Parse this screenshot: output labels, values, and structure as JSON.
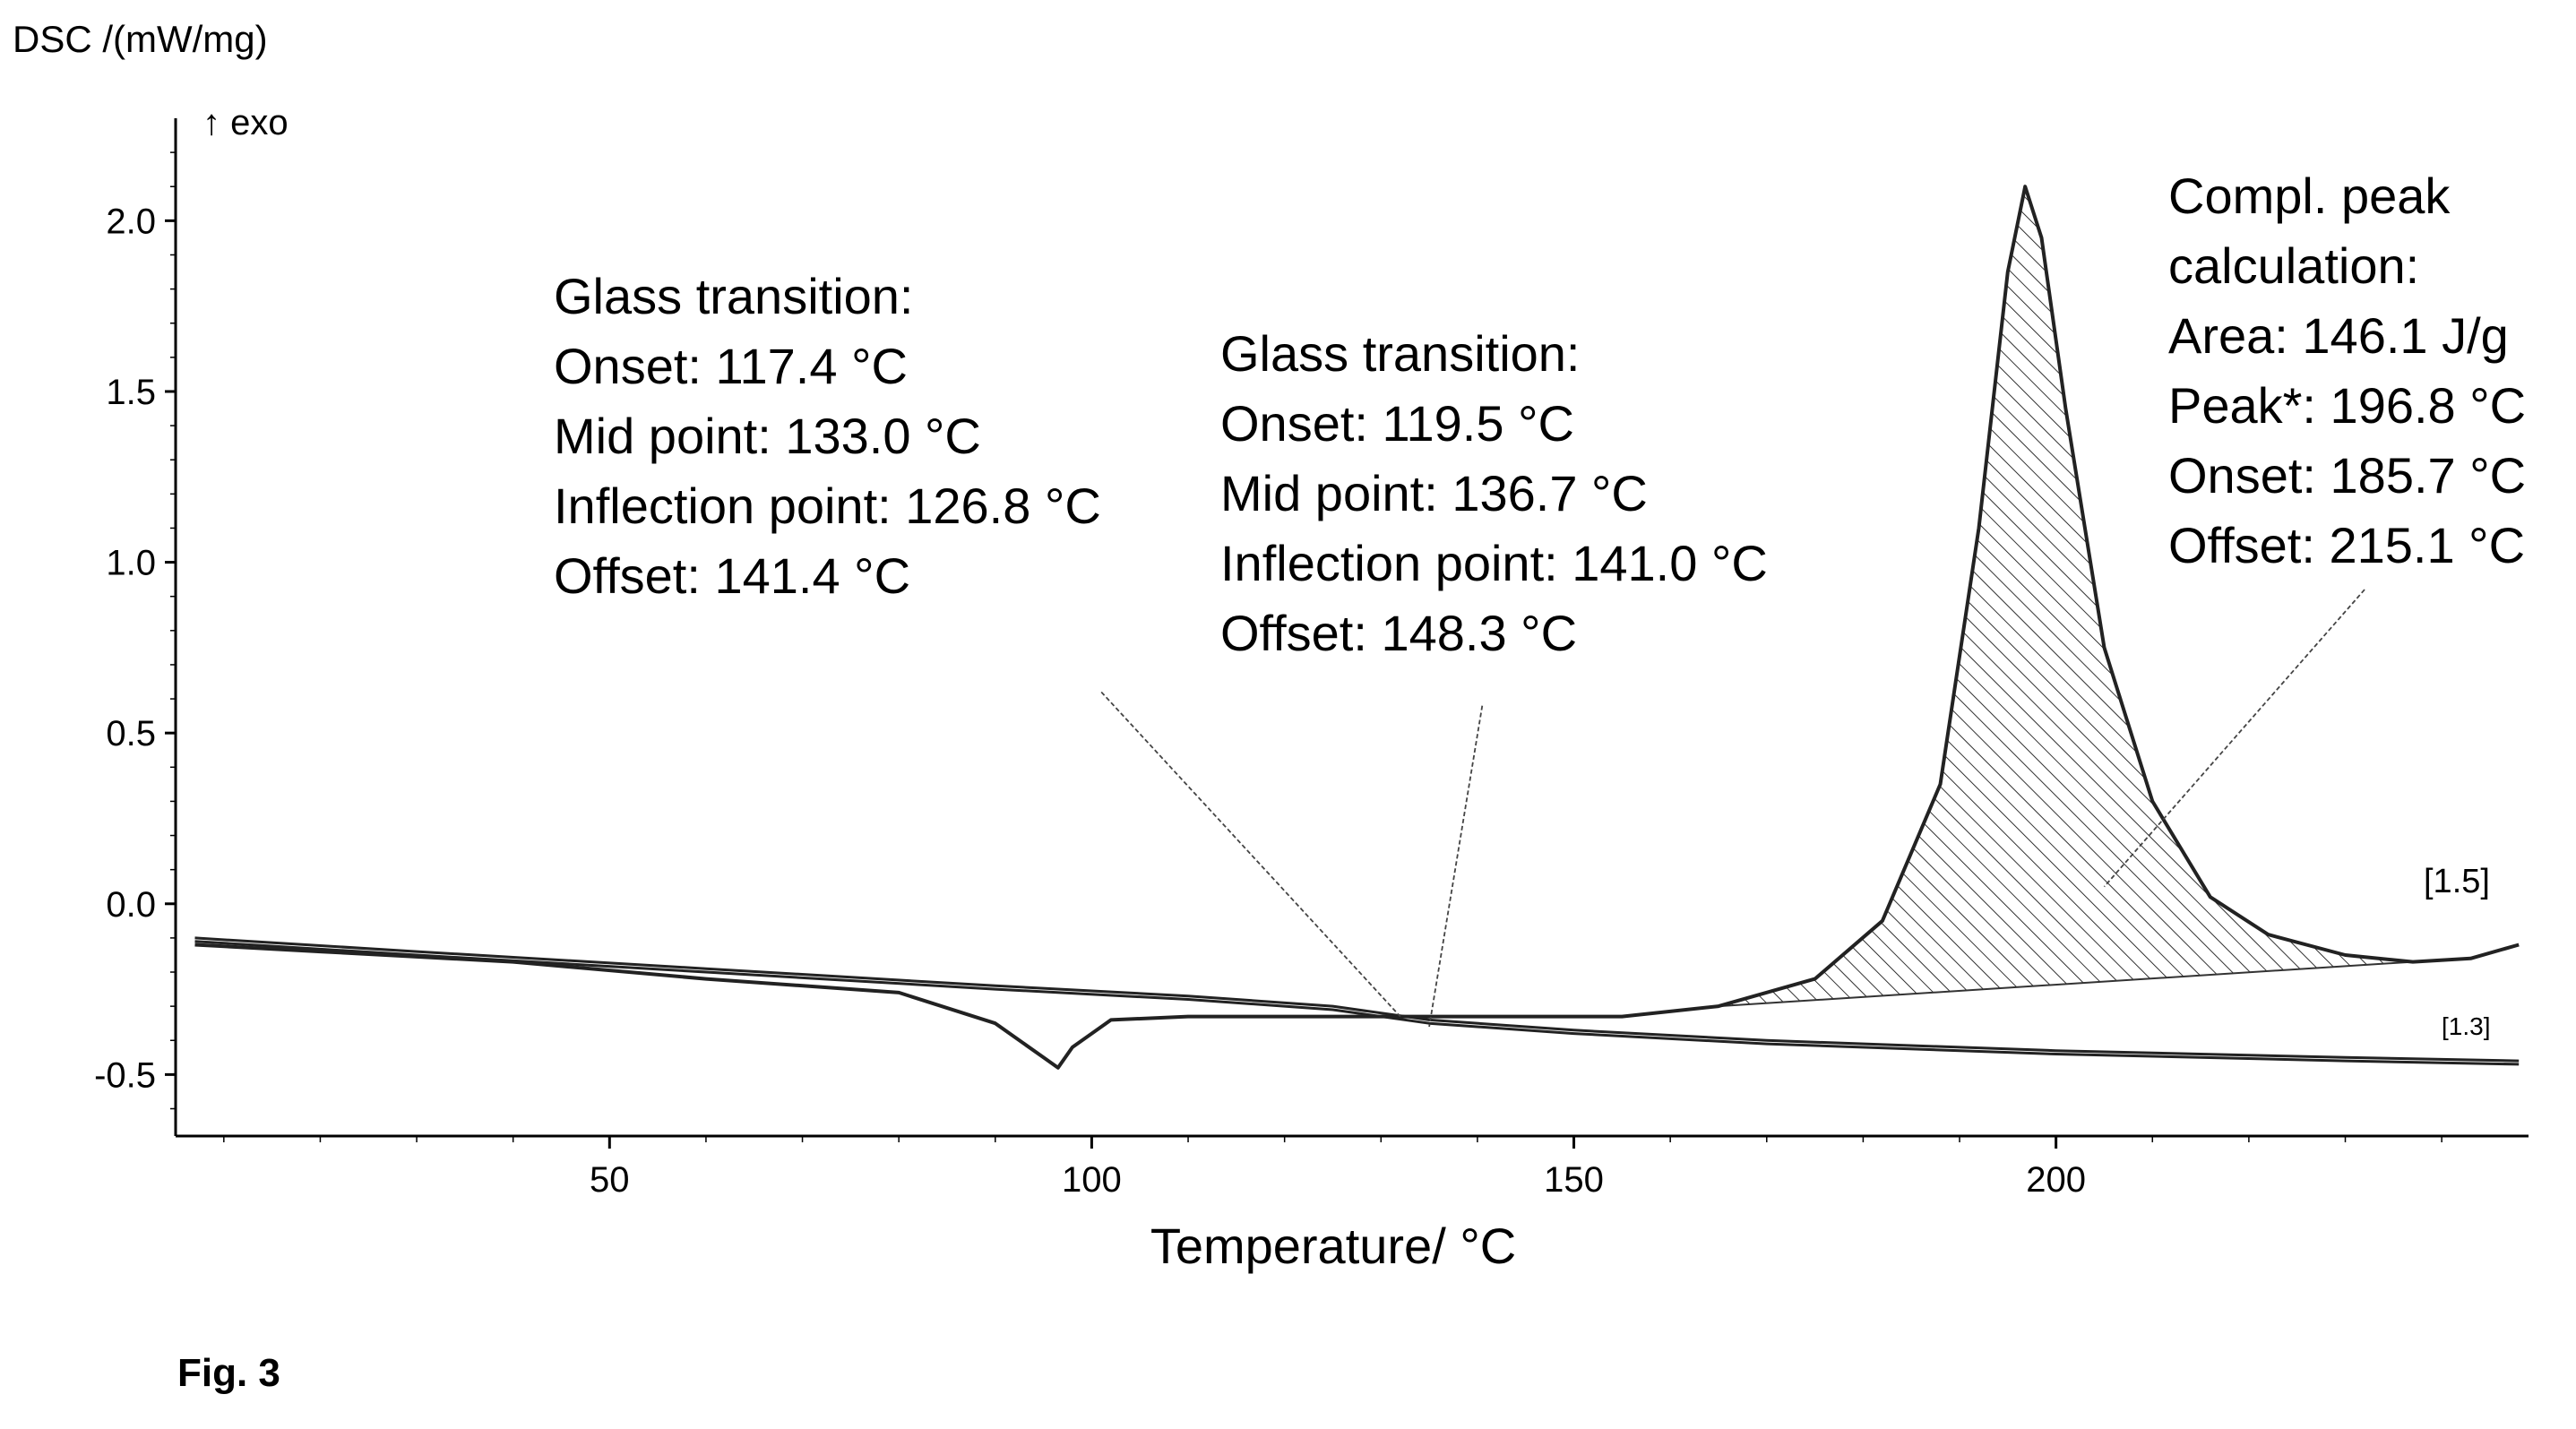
{
  "figure_label": "Fig. 3",
  "chart_data": {
    "type": "line",
    "ylabel": "DSC /(mW/mg)",
    "y_direction_label": "↑ exo",
    "xlabel": "Temperature/ °C",
    "xlim": [
      5,
      249
    ],
    "ylim": [
      -0.68,
      2.3
    ],
    "x_ticks": [
      50,
      100,
      150,
      200
    ],
    "x_tick_labels": [
      "50",
      "100",
      "150",
      "200"
    ],
    "y_ticks": [
      -0.5,
      0.0,
      0.5,
      1.0,
      1.5,
      2.0
    ],
    "y_tick_labels": [
      "-0.5",
      "0.0",
      "0.5",
      "1.0",
      "1.5",
      "2.0"
    ],
    "grid": false,
    "series": [
      {
        "x": [
          7,
          20,
          40,
          60,
          80,
          90,
          95,
          96.5,
          98,
          102,
          110,
          125,
          140,
          155,
          165,
          175,
          182,
          188,
          192,
          195,
          196.8,
          198.5,
          201,
          205,
          210,
          216,
          222,
          230,
          237,
          243,
          248
        ],
        "y": [
          -0.12,
          -0.14,
          -0.17,
          -0.22,
          -0.26,
          -0.35,
          -0.45,
          -0.48,
          -0.42,
          -0.34,
          -0.33,
          -0.33,
          -0.33,
          -0.33,
          -0.3,
          -0.22,
          -0.05,
          0.35,
          1.1,
          1.85,
          2.1,
          1.95,
          1.45,
          0.75,
          0.3,
          0.02,
          -0.09,
          -0.15,
          -0.17,
          -0.16,
          -0.12
        ]
      },
      {
        "x": [
          7,
          30,
          60,
          90,
          110,
          125,
          135,
          150,
          170,
          200,
          230,
          248
        ],
        "y": [
          -0.1,
          -0.14,
          -0.19,
          -0.24,
          -0.27,
          -0.3,
          -0.34,
          -0.37,
          -0.4,
          -0.43,
          -0.45,
          -0.46
        ]
      },
      {
        "x": [
          7,
          30,
          60,
          90,
          110,
          125,
          135,
          150,
          170,
          200,
          230,
          248
        ],
        "y": [
          -0.11,
          -0.15,
          -0.2,
          -0.25,
          -0.28,
          -0.31,
          -0.35,
          -0.38,
          -0.41,
          -0.44,
          -0.46,
          -0.47
        ]
      }
    ],
    "series_end_labels": [
      "[1.5]",
      "[1.3]"
    ],
    "peak_area": {
      "x": [
        165,
        175,
        182,
        188,
        192,
        195,
        196.8,
        198.5,
        201,
        205,
        210,
        216,
        222,
        230,
        237
      ],
      "y": [
        -0.3,
        -0.22,
        -0.05,
        0.35,
        1.1,
        1.85,
        2.1,
        1.95,
        1.45,
        0.75,
        0.3,
        0.02,
        -0.09,
        -0.15,
        -0.17
      ],
      "baseline": [
        [
          165,
          -0.3
        ],
        [
          237,
          -0.17
        ]
      ]
    },
    "annotations": [
      {
        "lines": [
          "Glass transition:",
          "Onset: 117.4 °C",
          "Mid point: 133.0 °C",
          "Inflection point: 126.8 °C",
          "Offset: 141.4 °C"
        ],
        "pointer_from": [
          101,
          0.62
        ],
        "pointer_to": [
          132,
          -0.33
        ]
      },
      {
        "lines": [
          "Glass transition:",
          "Onset: 119.5 °C",
          "Mid point: 136.7 °C",
          "Inflection point: 141.0 °C",
          "Offset: 148.3 °C"
        ],
        "pointer_from": [
          140.5,
          0.58
        ],
        "pointer_to": [
          135,
          -0.36
        ]
      },
      {
        "lines": [
          "Compl. peak",
          "calculation:",
          "Area: 146.1 J/g",
          "Peak*: 196.8 °C",
          "Onset: 185.7 °C",
          "Offset: 215.1 °C"
        ],
        "pointer_from": [
          232,
          0.92
        ],
        "pointer_to": [
          205,
          0.05
        ]
      }
    ]
  }
}
